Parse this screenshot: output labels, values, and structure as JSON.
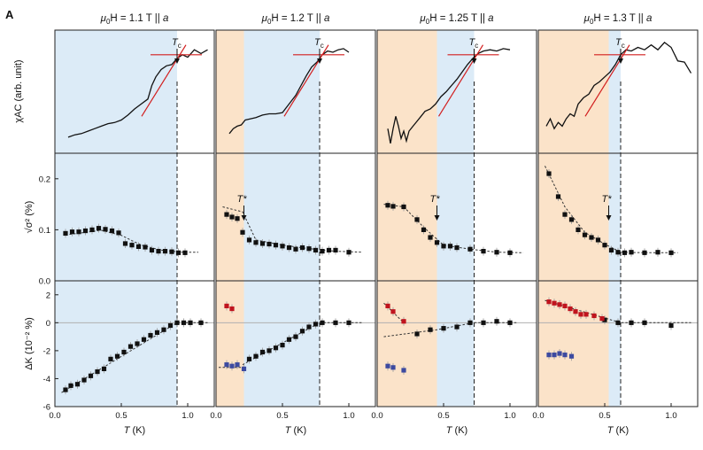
{
  "figure": {
    "panel_label": "A",
    "colors": {
      "blue_region": "#dcebf7",
      "orange_region": "#fbe3c9",
      "data": "#111111",
      "fit_line": "#d21e1e",
      "positive_points": "#c0141e",
      "negative_points": "#3c4aa0",
      "zero_line": "#b0b0b0"
    }
  },
  "chart_data": [
    {
      "type": "line",
      "title_parts": [
        "μ",
        "0",
        "H = 1.1 T || ",
        "a"
      ],
      "title": "μ0H = 1.1 T || a",
      "tc_label": [
        "T",
        "c"
      ],
      "tstar_label": "",
      "Tc": 0.92,
      "xlim": [
        0,
        1.2
      ],
      "xticks": [
        "0.0",
        "0.5",
        "1.0"
      ],
      "xlabel": "T (K)",
      "regions": [
        {
          "from": 0,
          "to": 0.92,
          "color": "blue"
        }
      ],
      "chi_ylabel": "χAC (arb. unit)",
      "chi_ylim": [
        0,
        1
      ],
      "chi_x": [
        0.1,
        0.15,
        0.2,
        0.25,
        0.3,
        0.35,
        0.4,
        0.45,
        0.5,
        0.55,
        0.6,
        0.65,
        0.7,
        0.73,
        0.76,
        0.8,
        0.84,
        0.88,
        0.92,
        0.96,
        1.0,
        1.05,
        1.1,
        1.15
      ],
      "chi_y": [
        0.13,
        0.15,
        0.16,
        0.18,
        0.2,
        0.22,
        0.24,
        0.25,
        0.27,
        0.31,
        0.36,
        0.4,
        0.44,
        0.55,
        0.62,
        0.68,
        0.71,
        0.72,
        0.77,
        0.8,
        0.78,
        0.84,
        0.81,
        0.84
      ],
      "sigma_ylabel": "√σ² (%)",
      "sigma_ylim": [
        0,
        0.25
      ],
      "sigma_yticks": [
        "0.0",
        "0.1",
        "0.2"
      ],
      "sigma_x": [
        0.08,
        0.13,
        0.18,
        0.23,
        0.28,
        0.33,
        0.38,
        0.43,
        0.48,
        0.53,
        0.58,
        0.63,
        0.68,
        0.73,
        0.78,
        0.83,
        0.88,
        0.93,
        0.98
      ],
      "sigma_y": [
        0.093,
        0.096,
        0.096,
        0.098,
        0.1,
        0.103,
        0.101,
        0.098,
        0.094,
        0.073,
        0.07,
        0.067,
        0.066,
        0.06,
        0.058,
        0.058,
        0.057,
        0.055,
        0.055
      ],
      "sigma_fit_x": [
        0.08,
        0.2,
        0.35,
        0.5,
        0.65,
        0.8,
        0.95,
        1.08
      ],
      "sigma_fit_y": [
        0.09,
        0.094,
        0.099,
        0.089,
        0.07,
        0.06,
        0.056,
        0.056
      ],
      "dk_ylabel": "ΔK (10⁻² %)",
      "dk_ylim": [
        -6,
        3
      ],
      "dk_yticks": [
        "2",
        "0",
        "-2",
        "-4",
        "-6"
      ],
      "dk_black_x": [
        0.08,
        0.12,
        0.17,
        0.22,
        0.27,
        0.32,
        0.37,
        0.42,
        0.47,
        0.52,
        0.57,
        0.62,
        0.67,
        0.72,
        0.77,
        0.82,
        0.87,
        0.92,
        0.97,
        1.02,
        1.1
      ],
      "dk_black_y": [
        -4.8,
        -4.5,
        -4.4,
        -4.1,
        -3.8,
        -3.5,
        -3.3,
        -2.6,
        -2.4,
        -2.1,
        -1.7,
        -1.5,
        -1.2,
        -0.9,
        -0.7,
        -0.5,
        -0.2,
        0.0,
        0.0,
        0.0,
        0.0
      ],
      "dk_red_x": [],
      "dk_red_y": [],
      "dk_blue_x": [],
      "dk_blue_y": [],
      "dk_fit_x": [
        0.05,
        0.92,
        1.15
      ],
      "dk_fit_y": [
        -5.0,
        0.0,
        0.0
      ],
      "dk_fit2_x": [],
      "dk_fit2_y": []
    },
    {
      "type": "line",
      "title_parts": [
        "μ",
        "0",
        "H = 1.2 T || ",
        "a"
      ],
      "title": "μ0H = 1.2 T || a",
      "tc_label": [
        "T",
        "c"
      ],
      "tstar_label": "T*",
      "Tc": 0.78,
      "Tstar": 0.21,
      "xlim": [
        0,
        1.2
      ],
      "xticks": [
        "0.0",
        "0.5",
        "1.0"
      ],
      "xlabel": "T (K)",
      "regions": [
        {
          "from": 0,
          "to": 0.21,
          "color": "orange"
        },
        {
          "from": 0.21,
          "to": 0.78,
          "color": "blue"
        }
      ],
      "chi_x": [
        0.1,
        0.13,
        0.16,
        0.19,
        0.22,
        0.26,
        0.3,
        0.35,
        0.4,
        0.45,
        0.5,
        0.55,
        0.6,
        0.64,
        0.68,
        0.72,
        0.76,
        0.8,
        0.84,
        0.88,
        0.92,
        0.96,
        1.0
      ],
      "chi_y": [
        0.16,
        0.2,
        0.22,
        0.23,
        0.27,
        0.28,
        0.29,
        0.31,
        0.32,
        0.32,
        0.33,
        0.4,
        0.47,
        0.55,
        0.63,
        0.7,
        0.74,
        0.8,
        0.83,
        0.82,
        0.84,
        0.85,
        0.82
      ],
      "sigma_x": [
        0.08,
        0.12,
        0.16,
        0.2,
        0.25,
        0.3,
        0.35,
        0.4,
        0.45,
        0.5,
        0.55,
        0.6,
        0.65,
        0.7,
        0.75,
        0.8,
        0.85,
        0.9,
        1.0
      ],
      "sigma_y": [
        0.13,
        0.125,
        0.122,
        0.095,
        0.08,
        0.075,
        0.073,
        0.072,
        0.07,
        0.068,
        0.065,
        0.062,
        0.065,
        0.063,
        0.06,
        0.058,
        0.06,
        0.06,
        0.056
      ],
      "sigma_fit_x": [
        0.05,
        0.2,
        0.3,
        0.5,
        0.7,
        0.9,
        1.1
      ],
      "sigma_fit_y": [
        0.145,
        0.135,
        0.08,
        0.07,
        0.063,
        0.058,
        0.056
      ],
      "dk_black_x": [
        0.25,
        0.3,
        0.35,
        0.4,
        0.45,
        0.5,
        0.55,
        0.6,
        0.65,
        0.7,
        0.75,
        0.8,
        0.9,
        1.0
      ],
      "dk_black_y": [
        -2.6,
        -2.4,
        -2.1,
        -2.0,
        -1.8,
        -1.6,
        -1.2,
        -1.0,
        -0.6,
        -0.3,
        -0.1,
        0.0,
        0.0,
        0.0
      ],
      "dk_red_x": [
        0.08,
        0.12
      ],
      "dk_red_y": [
        1.2,
        1.0
      ],
      "dk_blue_x": [
        0.08,
        0.12,
        0.16,
        0.21
      ],
      "dk_blue_y": [
        -3.0,
        -3.1,
        -3.0,
        -3.3
      ],
      "dk_fit_x": [
        0.2,
        0.78,
        1.1
      ],
      "dk_fit_y": [
        -3.0,
        0.0,
        0.0
      ],
      "dk_fit2_x": [
        0.02,
        0.21
      ],
      "dk_fit2_y": [
        -3.2,
        -3.2
      ]
    },
    {
      "type": "line",
      "title_parts": [
        "μ",
        "0",
        "H = 1.25 T || ",
        "a"
      ],
      "title": "μ0H = 1.25 T || a",
      "tc_label": [
        "T",
        "c"
      ],
      "tstar_label": "T*",
      "Tc": 0.73,
      "Tstar": 0.45,
      "xlim": [
        0,
        1.2
      ],
      "xticks": [
        "0.0",
        "0.5",
        "1.0"
      ],
      "xlabel": "T (K)",
      "regions": [
        {
          "from": 0,
          "to": 0.45,
          "color": "orange"
        },
        {
          "from": 0.45,
          "to": 0.73,
          "color": "blue"
        }
      ],
      "chi_x": [
        0.08,
        0.1,
        0.12,
        0.14,
        0.16,
        0.18,
        0.2,
        0.22,
        0.24,
        0.27,
        0.3,
        0.33,
        0.36,
        0.4,
        0.44,
        0.48,
        0.52,
        0.56,
        0.6,
        0.64,
        0.68,
        0.72,
        0.76,
        0.8,
        0.85,
        0.9,
        0.95,
        1.0
      ],
      "chi_y": [
        0.2,
        0.08,
        0.2,
        0.3,
        0.22,
        0.12,
        0.18,
        0.1,
        0.18,
        0.22,
        0.26,
        0.3,
        0.34,
        0.36,
        0.4,
        0.46,
        0.5,
        0.55,
        0.6,
        0.66,
        0.72,
        0.77,
        0.81,
        0.83,
        0.84,
        0.83,
        0.85,
        0.84
      ],
      "sigma_x": [
        0.08,
        0.12,
        0.2,
        0.3,
        0.35,
        0.4,
        0.45,
        0.5,
        0.55,
        0.6,
        0.7,
        0.8,
        0.9,
        1.0
      ],
      "sigma_y": [
        0.148,
        0.146,
        0.145,
        0.12,
        0.1,
        0.085,
        0.075,
        0.068,
        0.068,
        0.065,
        0.062,
        0.058,
        0.056,
        0.055
      ],
      "sigma_fit_x": [
        0.05,
        0.2,
        0.35,
        0.5,
        0.7,
        0.9,
        1.1
      ],
      "sigma_fit_y": [
        0.15,
        0.145,
        0.105,
        0.07,
        0.062,
        0.056,
        0.055
      ],
      "dk_black_x": [
        0.3,
        0.4,
        0.5,
        0.6,
        0.7,
        0.8,
        0.9,
        1.0
      ],
      "dk_black_y": [
        -0.8,
        -0.5,
        -0.4,
        -0.3,
        0.0,
        0.0,
        0.1,
        0.0
      ],
      "dk_red_x": [
        0.08,
        0.12,
        0.2
      ],
      "dk_red_y": [
        1.2,
        0.8,
        0.1
      ],
      "dk_blue_x": [
        0.08,
        0.12,
        0.2
      ],
      "dk_blue_y": [
        -3.1,
        -3.2,
        -3.4
      ],
      "dk_fit_x": [
        0.05,
        0.45,
        0.73,
        1.05
      ],
      "dk_fit_y": [
        -1.0,
        -0.5,
        0.0,
        0.0
      ],
      "dk_fit2_x": [
        0.05,
        0.2
      ],
      "dk_fit2_y": [
        1.4,
        0.0
      ]
    },
    {
      "type": "line",
      "title_parts": [
        "μ",
        "0",
        "H = 1.3 T || ",
        "a"
      ],
      "title": "μ0H = 1.3 T || a",
      "tc_label": [
        "T",
        "c"
      ],
      "tstar_label": "T*",
      "Tc": 0.62,
      "Tstar": 0.53,
      "xlim": [
        0,
        1.2
      ],
      "xticks": [
        "0.0",
        "0.5",
        "1.0"
      ],
      "xlabel": "T (K)",
      "regions": [
        {
          "from": 0,
          "to": 0.53,
          "color": "orange"
        },
        {
          "from": 0.53,
          "to": 0.62,
          "color": "blue"
        }
      ],
      "chi_x": [
        0.06,
        0.09,
        0.12,
        0.15,
        0.18,
        0.21,
        0.24,
        0.27,
        0.3,
        0.34,
        0.38,
        0.42,
        0.46,
        0.5,
        0.54,
        0.58,
        0.62,
        0.66,
        0.7,
        0.75,
        0.8,
        0.85,
        0.9,
        0.95,
        1.0,
        1.05,
        1.1,
        1.15
      ],
      "chi_y": [
        0.22,
        0.28,
        0.2,
        0.25,
        0.22,
        0.28,
        0.32,
        0.3,
        0.4,
        0.45,
        0.48,
        0.55,
        0.58,
        0.62,
        0.66,
        0.72,
        0.8,
        0.84,
        0.83,
        0.86,
        0.84,
        0.88,
        0.84,
        0.9,
        0.86,
        0.75,
        0.74,
        0.65
      ],
      "sigma_x": [
        0.08,
        0.15,
        0.2,
        0.25,
        0.3,
        0.35,
        0.4,
        0.45,
        0.5,
        0.55,
        0.6,
        0.65,
        0.7,
        0.8,
        0.9,
        1.0
      ],
      "sigma_y": [
        0.21,
        0.165,
        0.13,
        0.12,
        0.1,
        0.09,
        0.085,
        0.08,
        0.07,
        0.06,
        0.056,
        0.055,
        0.056,
        0.055,
        0.056,
        0.055
      ],
      "sigma_fit_x": [
        0.05,
        0.2,
        0.35,
        0.5,
        0.62,
        0.8,
        1.05
      ],
      "sigma_fit_y": [
        0.225,
        0.145,
        0.095,
        0.072,
        0.056,
        0.055,
        0.055
      ],
      "dk_black_x": [
        0.5,
        0.6,
        0.7,
        0.8,
        1.0
      ],
      "dk_black_y": [
        0.2,
        0.0,
        0.0,
        0.0,
        -0.2
      ],
      "dk_red_x": [
        0.08,
        0.12,
        0.16,
        0.2,
        0.24,
        0.28,
        0.32,
        0.36,
        0.42,
        0.48
      ],
      "dk_red_y": [
        1.5,
        1.4,
        1.3,
        1.2,
        1.0,
        0.8,
        0.6,
        0.6,
        0.5,
        0.3
      ],
      "dk_blue_x": [
        0.08,
        0.12,
        0.16,
        0.2,
        0.25
      ],
      "dk_blue_y": [
        -2.3,
        -2.3,
        -2.2,
        -2.3,
        -2.4
      ],
      "dk_fit_x": [
        0.05,
        0.62,
        1.15
      ],
      "dk_fit_y": [
        1.6,
        0.0,
        0.0
      ],
      "dk_fit2_x": [],
      "dk_fit2_y": []
    }
  ]
}
